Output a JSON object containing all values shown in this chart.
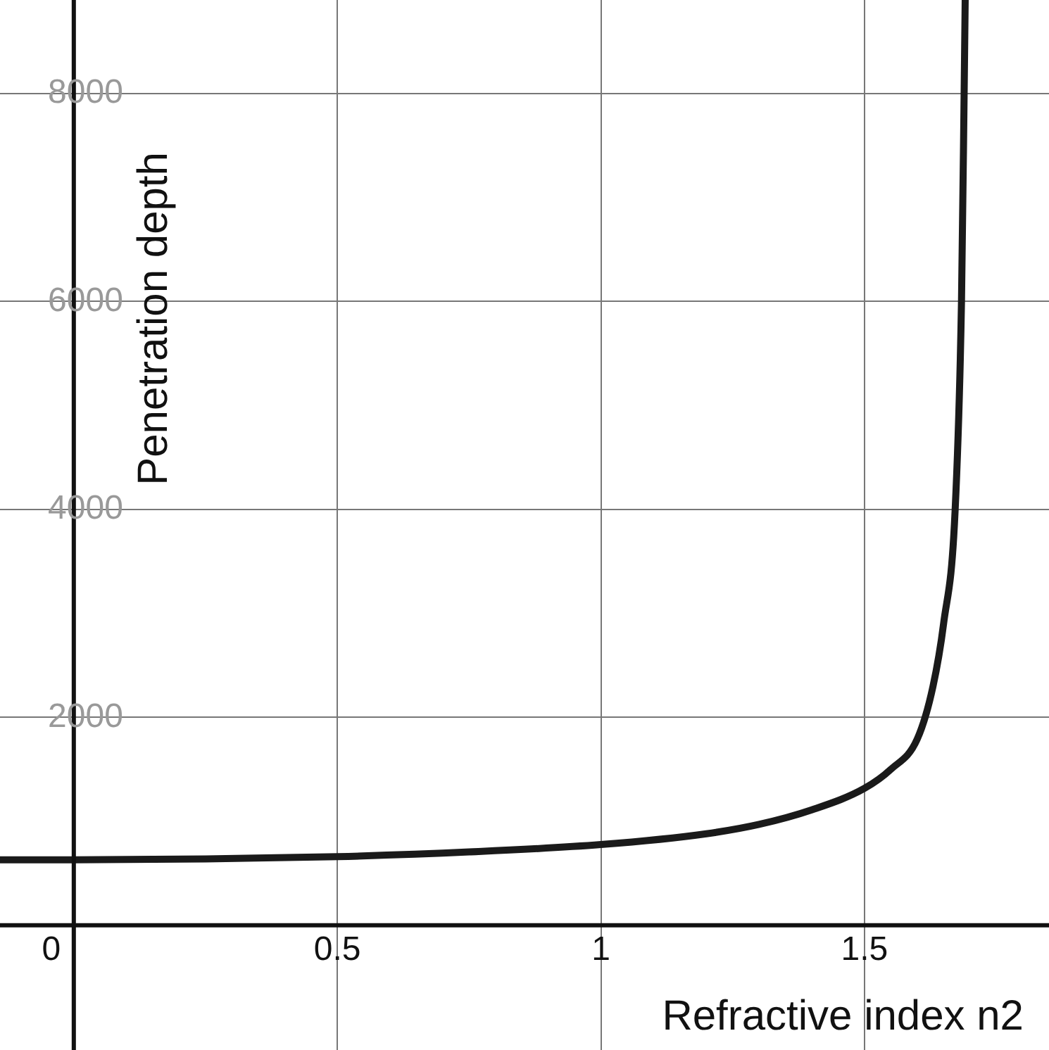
{
  "chart_data": {
    "type": "line",
    "xlabel": "Refractive index n2",
    "ylabel": "Penetration depth",
    "series": [
      {
        "color": "#1a1a1a",
        "x": [
          -0.14,
          0,
          0.25,
          0.5,
          0.75,
          1,
          1.2,
          1.3,
          1.4,
          1.5,
          1.55,
          1.6,
          1.63,
          1.65,
          1.672,
          1.684,
          1.689,
          1.691
        ],
        "values": [
          629,
          629,
          638,
          660,
          705,
          776,
          880,
          970,
          1110,
          1317,
          1500,
          1790,
          2300,
          2900,
          4000,
          6000,
          8000,
          8900
        ]
      }
    ],
    "xlim": [
      -0.14,
      1.85
    ],
    "ylim": [
      -1200,
      8900
    ],
    "xticks": [
      0,
      0.5,
      1,
      1.5
    ],
    "yticks": [
      2000,
      4000,
      6000,
      8000
    ],
    "grid": true,
    "legend": false,
    "marker": "none",
    "line_style": "solid"
  }
}
